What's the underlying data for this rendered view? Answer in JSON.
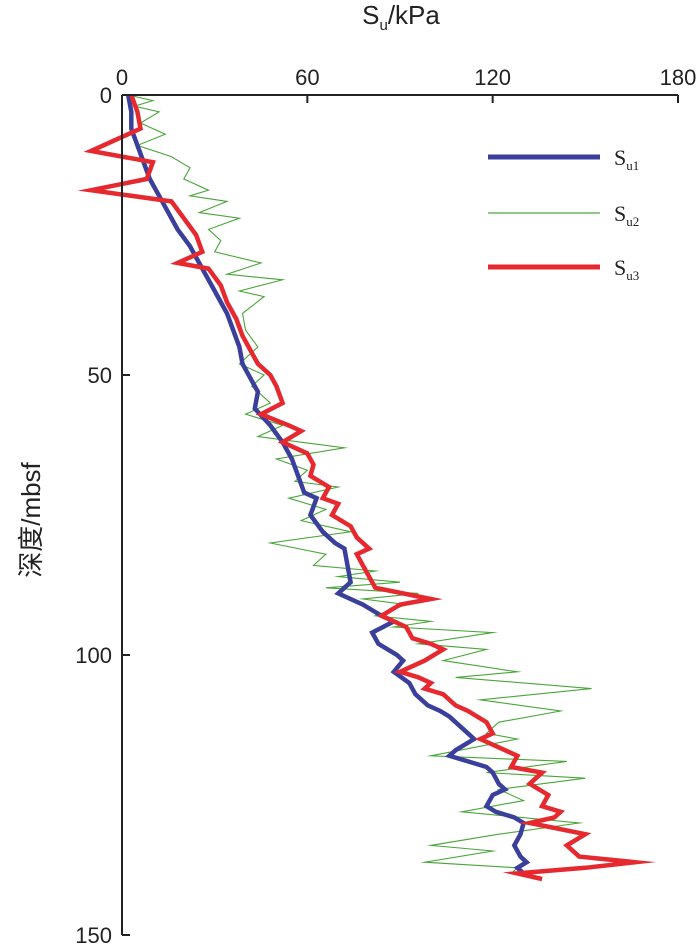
{
  "chart_data": {
    "type": "line",
    "orientation": "profile (x = value, y = depth increasing downward)",
    "xlabel": {
      "main": "S",
      "sub": "u",
      "rest": "/kPa"
    },
    "ylabel": "深度/mbsf",
    "xlim": [
      0,
      180
    ],
    "ylim": [
      0,
      150
    ],
    "x_ticks": [
      "0",
      "60",
      "120",
      "180"
    ],
    "y_ticks": [
      "0",
      "50",
      "100",
      "150"
    ],
    "x_axis_position": "top",
    "y_axis_inverted": true,
    "grid": false,
    "legend_position": "top-right",
    "series": [
      {
        "name": "Su1",
        "name_main": "S",
        "name_sub": "u1",
        "color": "#3b3f9c",
        "style": "thick",
        "points": [
          [
            2,
            0
          ],
          [
            3,
            3
          ],
          [
            3,
            6
          ],
          [
            5,
            9
          ],
          [
            7,
            12
          ],
          [
            9,
            15
          ],
          [
            12,
            18
          ],
          [
            15,
            21
          ],
          [
            18,
            24
          ],
          [
            22,
            27
          ],
          [
            25,
            30
          ],
          [
            28,
            33
          ],
          [
            31,
            36
          ],
          [
            34,
            39
          ],
          [
            36,
            42
          ],
          [
            38,
            45
          ],
          [
            39,
            48
          ],
          [
            42,
            51
          ],
          [
            44,
            53
          ],
          [
            43,
            56
          ],
          [
            48,
            59
          ],
          [
            52,
            62
          ],
          [
            55,
            65
          ],
          [
            57,
            68
          ],
          [
            59,
            71
          ],
          [
            63,
            72
          ],
          [
            61,
            75
          ],
          [
            65,
            78
          ],
          [
            69,
            80
          ],
          [
            72,
            81
          ],
          [
            73,
            84
          ],
          [
            74,
            87
          ],
          [
            70,
            89
          ],
          [
            78,
            91
          ],
          [
            84,
            93
          ],
          [
            88,
            94
          ],
          [
            81,
            96
          ],
          [
            83,
            98
          ],
          [
            89,
            100
          ],
          [
            91,
            101
          ],
          [
            88,
            103
          ],
          [
            93,
            105
          ],
          [
            95,
            107
          ],
          [
            99,
            109
          ],
          [
            103,
            110
          ],
          [
            106,
            111
          ],
          [
            110,
            113
          ],
          [
            114,
            115
          ],
          [
            108,
            117
          ],
          [
            106,
            118
          ],
          [
            112,
            119
          ],
          [
            118,
            120
          ],
          [
            120,
            121
          ],
          [
            122,
            123
          ],
          [
            124,
            124
          ],
          [
            120,
            125
          ],
          [
            118,
            127
          ],
          [
            121,
            128
          ],
          [
            127,
            129
          ],
          [
            130,
            130
          ],
          [
            129,
            132
          ],
          [
            127,
            134
          ],
          [
            129,
            136
          ],
          [
            131,
            137
          ],
          [
            128,
            138
          ],
          [
            130,
            139
          ]
        ]
      },
      {
        "name": "Su2",
        "name_main": "S",
        "name_sub": "u2",
        "color": "#4aa63a",
        "style": "thin",
        "points": [
          [
            2,
            0
          ],
          [
            10,
            1
          ],
          [
            4,
            2
          ],
          [
            12,
            3
          ],
          [
            6,
            5
          ],
          [
            14,
            7
          ],
          [
            5,
            9
          ],
          [
            16,
            11
          ],
          [
            22,
            13
          ],
          [
            20,
            15
          ],
          [
            28,
            17
          ],
          [
            22,
            18
          ],
          [
            34,
            19
          ],
          [
            25,
            21
          ],
          [
            38,
            22
          ],
          [
            28,
            24
          ],
          [
            32,
            26
          ],
          [
            30,
            28
          ],
          [
            45,
            30
          ],
          [
            34,
            32
          ],
          [
            52,
            33
          ],
          [
            38,
            35
          ],
          [
            46,
            36
          ],
          [
            39,
            39
          ],
          [
            40,
            42
          ],
          [
            44,
            45
          ],
          [
            38,
            48
          ],
          [
            46,
            50
          ],
          [
            42,
            52
          ],
          [
            48,
            55
          ],
          [
            40,
            57
          ],
          [
            52,
            59
          ],
          [
            44,
            61
          ],
          [
            72,
            63
          ],
          [
            50,
            65
          ],
          [
            60,
            67
          ],
          [
            56,
            69
          ],
          [
            70,
            70
          ],
          [
            54,
            72
          ],
          [
            66,
            74
          ],
          [
            58,
            76
          ],
          [
            74,
            78
          ],
          [
            48,
            80
          ],
          [
            66,
            82
          ],
          [
            62,
            84
          ],
          [
            82,
            85
          ],
          [
            70,
            86
          ],
          [
            90,
            87
          ],
          [
            66,
            88
          ],
          [
            96,
            89
          ],
          [
            78,
            90
          ],
          [
            92,
            91
          ],
          [
            82,
            93
          ],
          [
            100,
            94
          ],
          [
            88,
            95
          ],
          [
            120,
            96
          ],
          [
            96,
            98
          ],
          [
            118,
            99
          ],
          [
            104,
            101
          ],
          [
            128,
            103
          ],
          [
            108,
            104
          ],
          [
            152,
            106
          ],
          [
            116,
            108
          ],
          [
            142,
            110
          ],
          [
            122,
            112
          ],
          [
            118,
            114
          ],
          [
            128,
            115
          ],
          [
            100,
            118
          ],
          [
            144,
            119
          ],
          [
            118,
            121
          ],
          [
            150,
            122
          ],
          [
            122,
            124
          ],
          [
            130,
            126
          ],
          [
            110,
            128
          ],
          [
            148,
            130
          ],
          [
            122,
            132
          ],
          [
            100,
            134
          ],
          [
            120,
            135
          ],
          [
            98,
            137
          ],
          [
            128,
            138
          ],
          [
            126,
            139
          ]
        ]
      },
      {
        "name": "Su3",
        "name_main": "S",
        "name_sub": "u3",
        "color": "#e5292f",
        "style": "thick",
        "points": [
          [
            3,
            0
          ],
          [
            5,
            3
          ],
          [
            6,
            6
          ],
          [
            -10,
            10
          ],
          [
            10,
            12
          ],
          [
            8,
            15
          ],
          [
            -10,
            17
          ],
          [
            16,
            19
          ],
          [
            20,
            22
          ],
          [
            24,
            25
          ],
          [
            26,
            28
          ],
          [
            18,
            30
          ],
          [
            28,
            31
          ],
          [
            32,
            34
          ],
          [
            34,
            37
          ],
          [
            37,
            40
          ],
          [
            39,
            43
          ],
          [
            42,
            46
          ],
          [
            44,
            48
          ],
          [
            48,
            50
          ],
          [
            50,
            52
          ],
          [
            52,
            55
          ],
          [
            45,
            57
          ],
          [
            54,
            59
          ],
          [
            58,
            60
          ],
          [
            52,
            62
          ],
          [
            60,
            64
          ],
          [
            62,
            66
          ],
          [
            61,
            68
          ],
          [
            67,
            70
          ],
          [
            65,
            72
          ],
          [
            70,
            73
          ],
          [
            68,
            75
          ],
          [
            74,
            77
          ],
          [
            76,
            79
          ],
          [
            80,
            81
          ],
          [
            76,
            82
          ],
          [
            78,
            84
          ],
          [
            80,
            86
          ],
          [
            82,
            88
          ],
          [
            100,
            90
          ],
          [
            90,
            91
          ],
          [
            84,
            93
          ],
          [
            92,
            95
          ],
          [
            94,
            97
          ],
          [
            100,
            98
          ],
          [
            104,
            99
          ],
          [
            98,
            101
          ],
          [
            90,
            103
          ],
          [
            96,
            104
          ],
          [
            100,
            105
          ],
          [
            98,
            106
          ],
          [
            104,
            107
          ],
          [
            108,
            109
          ],
          [
            112,
            110
          ],
          [
            118,
            112
          ],
          [
            120,
            114
          ],
          [
            116,
            115
          ],
          [
            124,
            117
          ],
          [
            128,
            118
          ],
          [
            126,
            120
          ],
          [
            136,
            121
          ],
          [
            132,
            123
          ],
          [
            138,
            125
          ],
          [
            136,
            127
          ],
          [
            142,
            128
          ],
          [
            140,
            129
          ],
          [
            132,
            130
          ],
          [
            150,
            132
          ],
          [
            144,
            134
          ],
          [
            148,
            136
          ],
          [
            166,
            137
          ],
          [
            150,
            138
          ],
          [
            128,
            139
          ],
          [
            136,
            140
          ]
        ]
      }
    ]
  }
}
